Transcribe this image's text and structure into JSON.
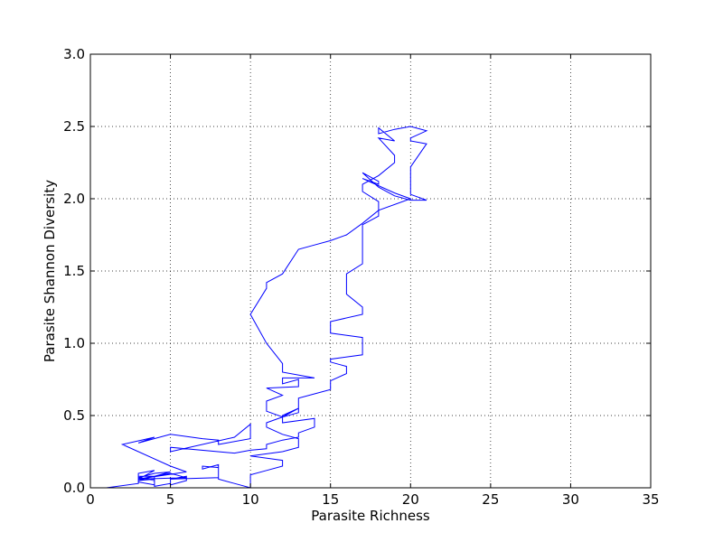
{
  "chart_data": {
    "type": "line",
    "title": "",
    "xlabel": "Parasite Richness",
    "ylabel": "Parasite Shannon Diversity",
    "xlim": [
      0,
      35
    ],
    "ylim": [
      0.0,
      3.0
    ],
    "grid": true,
    "x_ticks": [
      0,
      5,
      10,
      15,
      20,
      25,
      30,
      35
    ],
    "x_tick_labels": [
      "0",
      "5",
      "10",
      "15",
      "20",
      "25",
      "30",
      "35"
    ],
    "y_ticks": [
      0.0,
      0.5,
      1.0,
      1.5,
      2.0,
      2.5,
      3.0
    ],
    "y_tick_labels": [
      "0.0",
      "0.5",
      "1.0",
      "1.5",
      "2.0",
      "2.5",
      "3.0"
    ],
    "line_color": "#0000ff",
    "series": [
      {
        "x": [
          1,
          3,
          3,
          4,
          4,
          3,
          4,
          5,
          4,
          3,
          3,
          4,
          3,
          5,
          6,
          3,
          6,
          5,
          2,
          4,
          3,
          5,
          7,
          8,
          8,
          10,
          10,
          9,
          5,
          5,
          9,
          10,
          11,
          11,
          12,
          13,
          13,
          14,
          14,
          12,
          12,
          13,
          12,
          11,
          11,
          12,
          11,
          13,
          13,
          12,
          12,
          14,
          12,
          12,
          11,
          10,
          11,
          11,
          12,
          13,
          14,
          15,
          16,
          17,
          18,
          20,
          19,
          17,
          18,
          18,
          17,
          18,
          19,
          20,
          21,
          20,
          20,
          21,
          20,
          20,
          21,
          20,
          19,
          18,
          18,
          19,
          18,
          19,
          19,
          18,
          17,
          17,
          18,
          18,
          17,
          17,
          17,
          17,
          17,
          16,
          16,
          17,
          17,
          15,
          15,
          17,
          17,
          17,
          17,
          15,
          15,
          16,
          16,
          15,
          15,
          13,
          13,
          13,
          13,
          12,
          11,
          11,
          12,
          13,
          13,
          12,
          10,
          12,
          12,
          12,
          11,
          10,
          10,
          10,
          10,
          10,
          9,
          8,
          8,
          8,
          8,
          7,
          7,
          8,
          8,
          8,
          8,
          8,
          5,
          5,
          5,
          6,
          6,
          5,
          5,
          4,
          4,
          4,
          4,
          3,
          3,
          4
        ],
        "y": [
          0.0,
          0.03,
          0.08,
          0.08,
          0.05,
          0.07,
          0.1,
          0.11,
          0.08,
          0.05,
          0.1,
          0.12,
          0.06,
          0.1,
          0.07,
          0.06,
          0.11,
          0.15,
          0.3,
          0.35,
          0.31,
          0.37,
          0.34,
          0.33,
          0.3,
          0.34,
          0.44,
          0.35,
          0.25,
          0.28,
          0.24,
          0.26,
          0.27,
          0.3,
          0.33,
          0.35,
          0.38,
          0.42,
          0.48,
          0.45,
          0.5,
          0.55,
          0.49,
          0.53,
          0.6,
          0.64,
          0.69,
          0.7,
          0.75,
          0.72,
          0.76,
          0.76,
          0.8,
          0.86,
          1.0,
          1.2,
          1.38,
          1.42,
          1.48,
          1.65,
          1.68,
          1.71,
          1.75,
          1.83,
          1.92,
          2.0,
          2.04,
          2.14,
          2.1,
          2.12,
          2.18,
          2.08,
          2.02,
          1.99,
          1.99,
          2.03,
          2.22,
          2.38,
          2.4,
          2.42,
          2.47,
          2.5,
          2.48,
          2.45,
          2.49,
          2.4,
          2.42,
          2.3,
          2.25,
          2.16,
          2.1,
          2.05,
          1.98,
          1.88,
          1.82,
          1.72,
          1.65,
          1.58,
          1.55,
          1.48,
          1.34,
          1.25,
          1.2,
          1.15,
          1.07,
          1.04,
          1.0,
          0.96,
          0.92,
          0.89,
          0.87,
          0.84,
          0.79,
          0.74,
          0.68,
          0.62,
          0.58,
          0.55,
          0.52,
          0.49,
          0.45,
          0.42,
          0.37,
          0.34,
          0.28,
          0.25,
          0.22,
          0.19,
          0.17,
          0.15,
          0.12,
          0.09,
          0.07,
          0.04,
          0.02,
          0.0,
          0.03,
          0.06,
          0.1,
          0.14,
          0.16,
          0.13,
          0.15,
          0.14,
          0.12,
          0.1,
          0.08,
          0.07,
          0.06,
          0.04,
          0.02,
          0.05,
          0.08,
          0.06,
          0.03,
          0.01,
          0.04,
          0.05,
          0.06,
          0.05,
          0.04,
          0.02
        ],
        "name": ""
      }
    ]
  }
}
